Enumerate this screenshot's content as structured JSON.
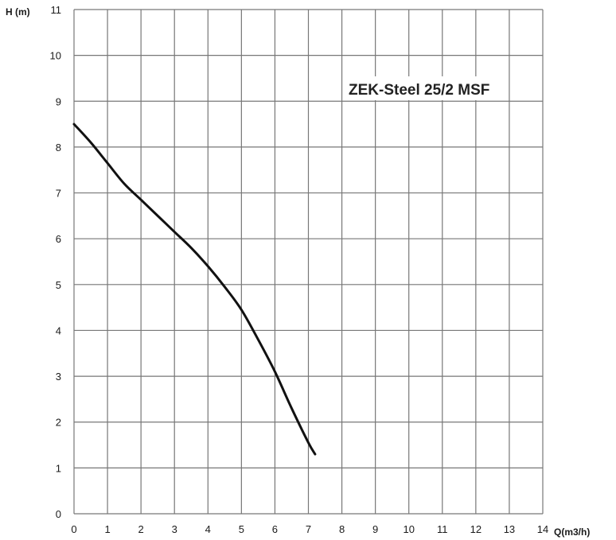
{
  "chart_data": {
    "type": "line",
    "title": "ZEK-Steel 25/2 MSF",
    "xlabel": "Q(m3/h)",
    "ylabel": "H (m)",
    "xlim": [
      0,
      14
    ],
    "ylim": [
      0,
      11
    ],
    "x_ticks": [
      "0",
      "1",
      "2",
      "3",
      "4",
      "5",
      "6",
      "7",
      "8",
      "9",
      "10",
      "11",
      "12",
      "13",
      "14"
    ],
    "y_ticks": [
      "0",
      "1",
      "2",
      "3",
      "4",
      "5",
      "6",
      "7",
      "8",
      "9",
      "10",
      "11"
    ],
    "grid": true,
    "legend": "none",
    "colors": {
      "line": "#111111",
      "grid": "#777777",
      "background": "#ffffff"
    },
    "series": [
      {
        "x": [
          0,
          0.5,
          1,
          1.5,
          2,
          2.5,
          3,
          3.5,
          4,
          4.5,
          5,
          5.5,
          6,
          6.5,
          7,
          7.2
        ],
        "y": [
          8.5,
          8.1,
          7.65,
          7.2,
          6.85,
          6.5,
          6.15,
          5.8,
          5.4,
          4.95,
          4.45,
          3.8,
          3.1,
          2.3,
          1.55,
          1.3
        ]
      }
    ]
  }
}
